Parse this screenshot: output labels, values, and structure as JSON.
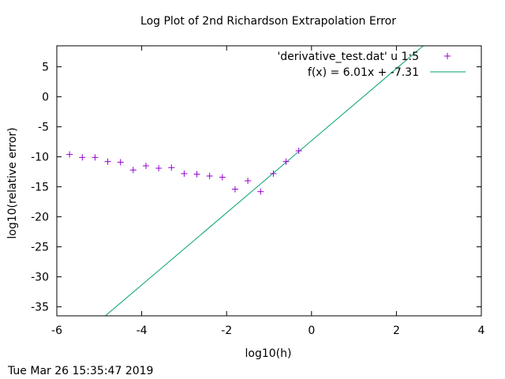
{
  "chart_data": {
    "type": "scatter",
    "title": "Log Plot of 2nd Richardson Extrapolation Error",
    "xlabel": "log10(h)",
    "ylabel": "log10(relative error)",
    "xlim": [
      -6,
      4
    ],
    "ylim": [
      -36.5,
      8.5
    ],
    "xticks": [
      -6,
      -4,
      -2,
      0,
      2,
      4
    ],
    "yticks": [
      5,
      0,
      -5,
      -10,
      -15,
      -20,
      -25,
      -30,
      -35
    ],
    "grid": false,
    "legend_position": "top-right",
    "series": [
      {
        "name": "'derivative_test.dat' u 1:5",
        "kind": "points",
        "marker": "+",
        "color": "#9400d3",
        "points": [
          [
            -5.7,
            -9.6
          ],
          [
            -5.4,
            -10.1
          ],
          [
            -5.1,
            -10.1
          ],
          [
            -4.8,
            -10.8
          ],
          [
            -4.5,
            -10.9
          ],
          [
            -4.2,
            -12.2
          ],
          [
            -3.9,
            -11.5
          ],
          [
            -3.6,
            -11.9
          ],
          [
            -3.3,
            -11.8
          ],
          [
            -3.0,
            -12.8
          ],
          [
            -2.7,
            -12.9
          ],
          [
            -2.4,
            -13.2
          ],
          [
            -2.1,
            -13.4
          ],
          [
            -1.8,
            -15.4
          ],
          [
            -1.5,
            -14.0
          ],
          [
            -1.2,
            -15.8
          ],
          [
            -0.9,
            -12.8
          ],
          [
            -0.6,
            -10.8
          ],
          [
            -0.3,
            -9.0
          ]
        ]
      },
      {
        "name": "f(x) = 6.01x + -7.31",
        "kind": "line",
        "color": "#009e73",
        "slope": 6.01,
        "intercept": -7.31
      }
    ]
  },
  "timestamp": "Tue Mar 26 15:35:47 2019"
}
